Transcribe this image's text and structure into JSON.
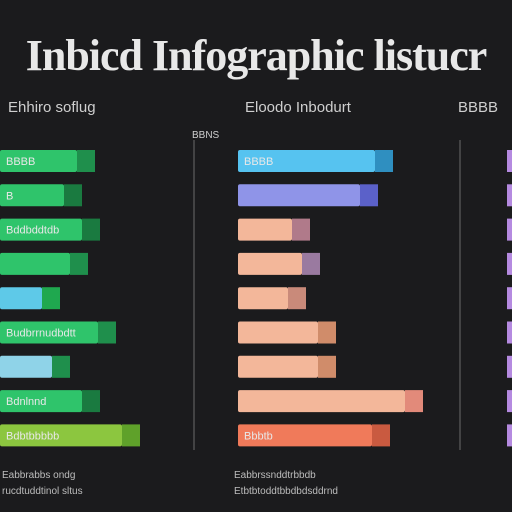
{
  "title": "Inbicd Infographic listucr",
  "chart_data": [
    {
      "type": "bar",
      "title": "Ehhiro soflug",
      "axis_label": "BBNS",
      "footer": [
        "Eabbrabbs ondg",
        "rucdtuddtinol sltus"
      ],
      "bars": [
        {
          "label": "BBBB",
          "value": 95,
          "color": "#2fc46b",
          "accent": "#1f8f4c"
        },
        {
          "label": "B",
          "value": 82,
          "color": "#2fc46b",
          "accent": "#1a7a40"
        },
        {
          "label": "Bddbddtdb",
          "value": 100,
          "color": "#2fc46b",
          "accent": "#1a7a40"
        },
        {
          "label": "",
          "value": 88,
          "color": "#2fc46b",
          "accent": "#1f8f4c"
        },
        {
          "label": "",
          "value": 60,
          "color": "#5ec9e8",
          "accent": "#1fa84f"
        },
        {
          "label": "Budbrrnudbdtt",
          "value": 116,
          "color": "#2fc46b",
          "accent": "#1f8f4c"
        },
        {
          "label": "",
          "value": 70,
          "color": "#8fd3e8",
          "accent": "#1f8f4c"
        },
        {
          "label": "Bdnlnnd",
          "value": 100,
          "color": "#2fc46b",
          "accent": "#1a7a40"
        },
        {
          "label": "Bdbtbbbbb",
          "value": 140,
          "color": "#8cc63f",
          "accent": "#5fa12a"
        }
      ]
    },
    {
      "type": "bar",
      "title": "Eloodo Inbodurt",
      "axis_label": "",
      "footer": [
        "Eabbrssnddtrbbdb",
        "Etbtbtoddtbbdbdsddrnd"
      ],
      "bars": [
        {
          "label": "BBBB",
          "value": 155,
          "color": "#56c3f0",
          "accent": "#2f8fc0"
        },
        {
          "label": "",
          "value": 140,
          "color": "#8f94e8",
          "accent": "#5b61c9"
        },
        {
          "label": "",
          "value": 72,
          "color": "#f3b79a",
          "accent": "#b07a8a"
        },
        {
          "label": "",
          "value": 82,
          "color": "#f3b79a",
          "accent": "#9a7aa0"
        },
        {
          "label": "",
          "value": 68,
          "color": "#f3b79a",
          "accent": "#c98a7a"
        },
        {
          "label": "",
          "value": 98,
          "color": "#f3b79a",
          "accent": "#d08c6a"
        },
        {
          "label": "",
          "value": 98,
          "color": "#f3b79a",
          "accent": "#d08c6a"
        },
        {
          "label": "",
          "value": 185,
          "color": "#f3b79a",
          "accent": "#e28a7a"
        },
        {
          "label": "Bbbtb",
          "value": 152,
          "color": "#f07a5a",
          "accent": "#c95a40"
        }
      ]
    },
    {
      "type": "bar",
      "title": "BBBB",
      "axis_label": "",
      "footer": [],
      "bars": [
        {
          "label": "",
          "value": 6,
          "color": "#b58ae0",
          "accent": "#b58ae0"
        },
        {
          "label": "",
          "value": 6,
          "color": "#b58ae0",
          "accent": "#b58ae0"
        },
        {
          "label": "",
          "value": 6,
          "color": "#b58ae0",
          "accent": "#b58ae0"
        },
        {
          "label": "",
          "value": 6,
          "color": "#b58ae0",
          "accent": "#b58ae0"
        },
        {
          "label": "",
          "value": 6,
          "color": "#b58ae0",
          "accent": "#b58ae0"
        },
        {
          "label": "",
          "value": 6,
          "color": "#b58ae0",
          "accent": "#b58ae0"
        },
        {
          "label": "",
          "value": 6,
          "color": "#b58ae0",
          "accent": "#b58ae0"
        },
        {
          "label": "",
          "value": 6,
          "color": "#b58ae0",
          "accent": "#b58ae0"
        },
        {
          "label": "",
          "value": 6,
          "color": "#b58ae0",
          "accent": "#b58ae0"
        }
      ]
    }
  ]
}
